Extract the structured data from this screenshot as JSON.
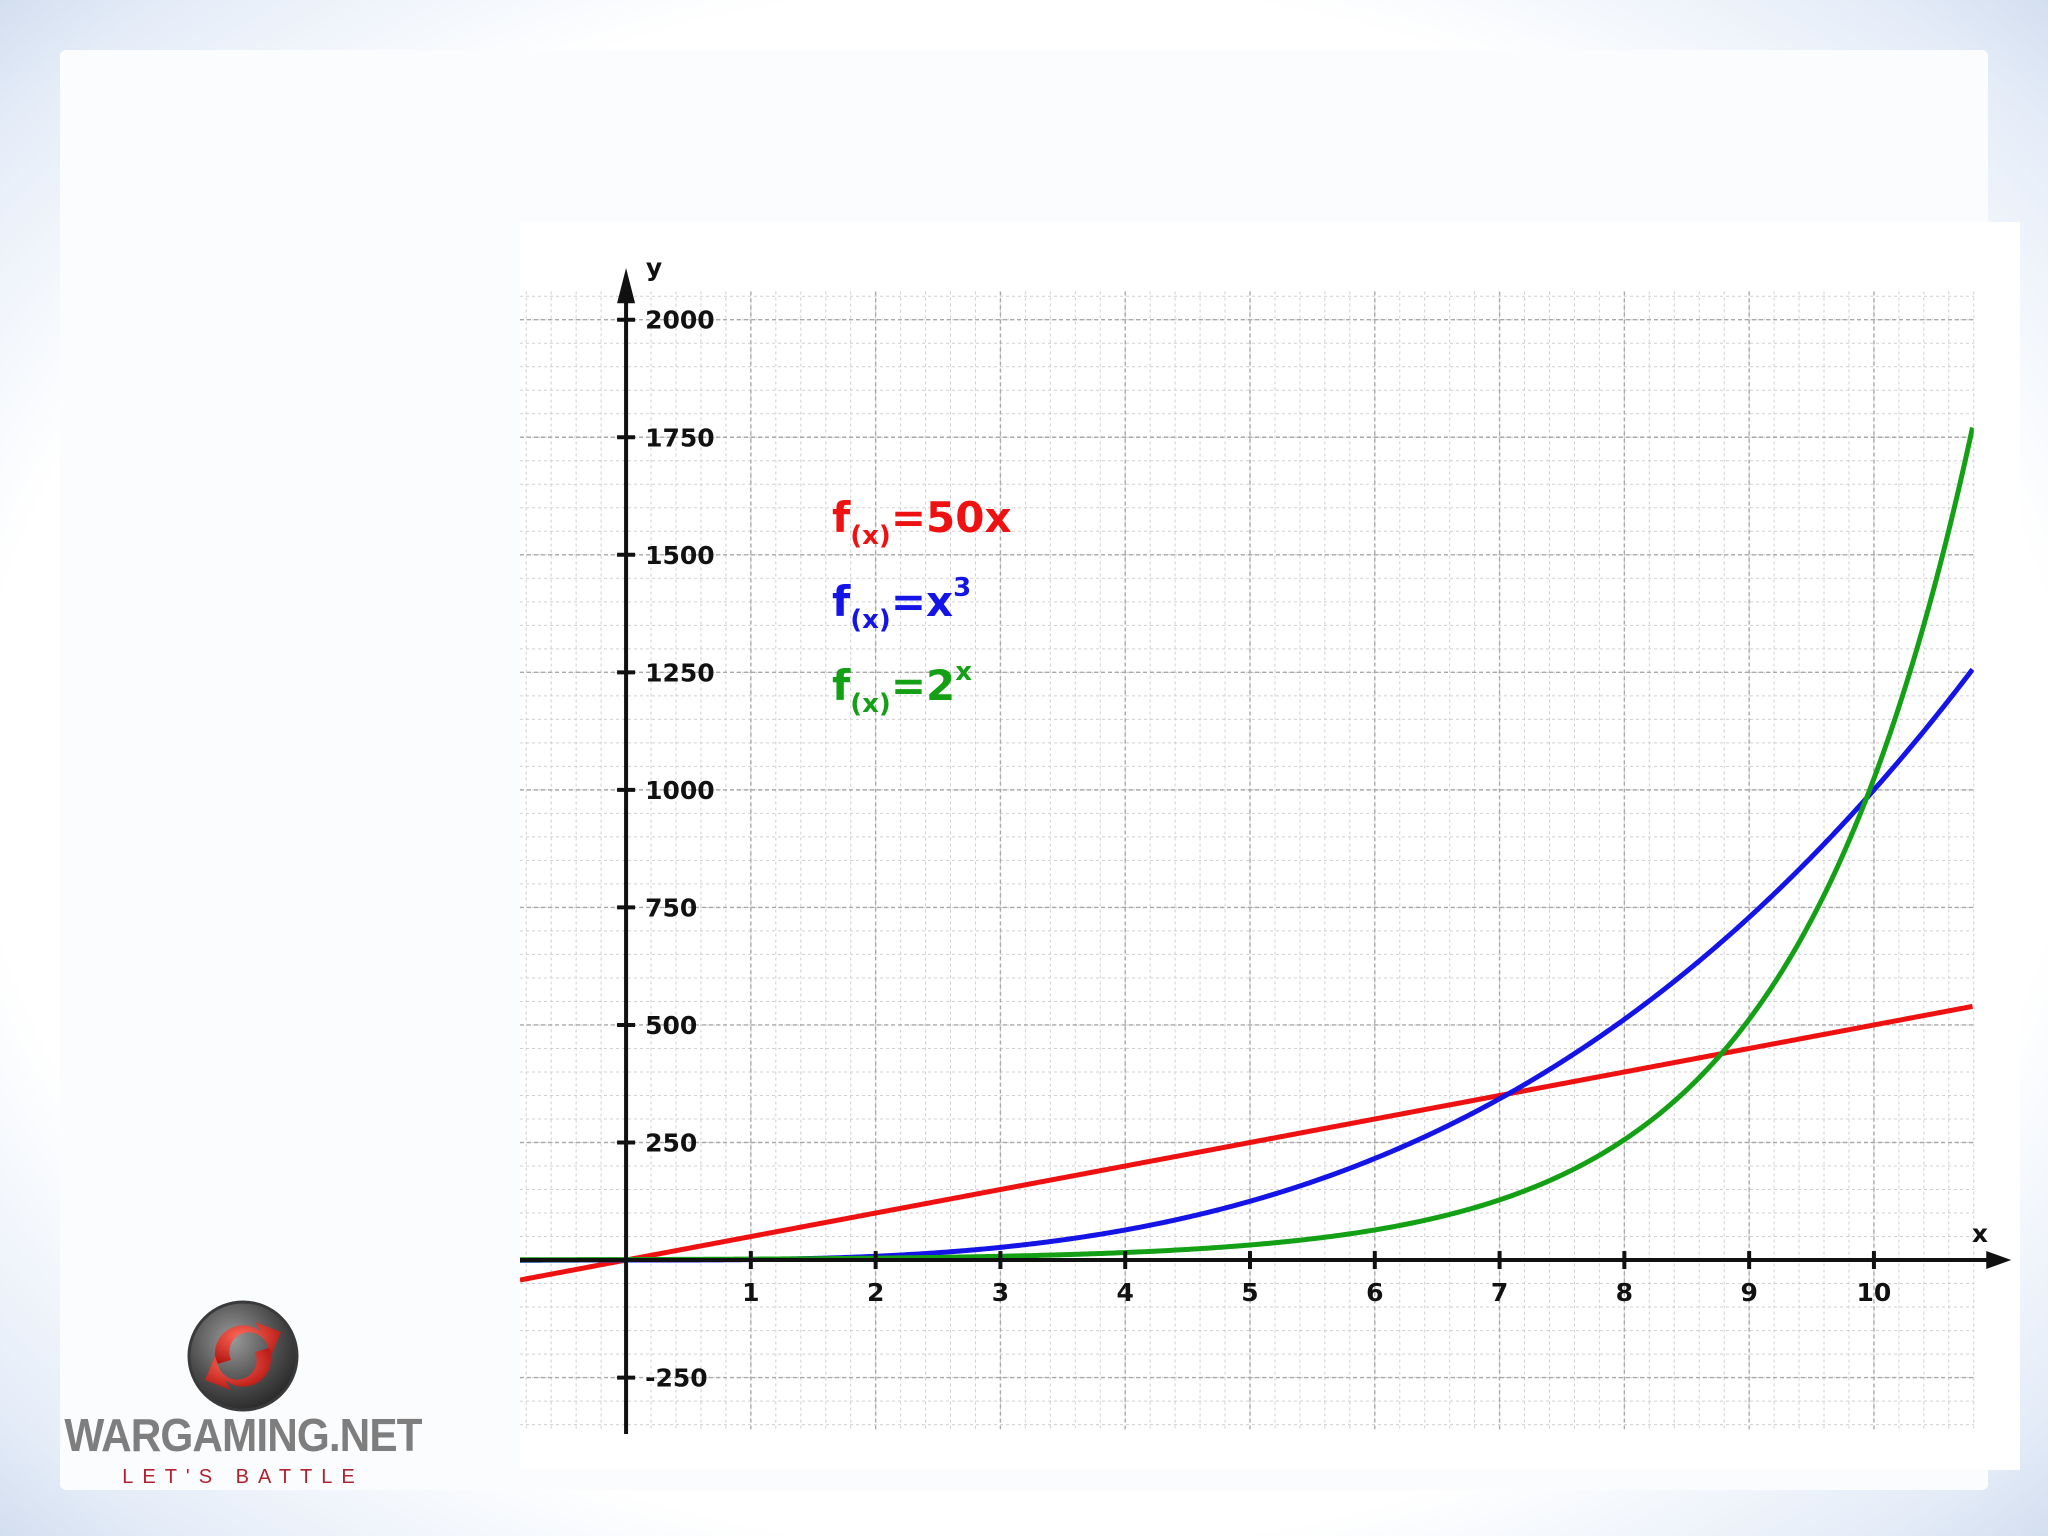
{
  "chart_data": {
    "type": "line",
    "xlabel": "x",
    "ylabel": "y",
    "xlim": [
      -0.85,
      10.85
    ],
    "ylim": [
      -370,
      2110
    ],
    "x_ticks": [
      1,
      2,
      3,
      4,
      5,
      6,
      7,
      8,
      9,
      10
    ],
    "y_ticks": [
      -250,
      250,
      500,
      750,
      1000,
      1250,
      1500,
      1750,
      2000
    ],
    "grid": true,
    "minor_grid": true,
    "series": [
      {
        "name": "f(x)=50x",
        "label_main": "f",
        "label_sub": "(x)",
        "label_rest": "=50x",
        "label_sup": "",
        "color": "#ee1111",
        "function": "50x",
        "values_at_ticks": [
          50,
          100,
          150,
          200,
          250,
          300,
          350,
          400,
          450,
          500
        ]
      },
      {
        "name": "f(x)=x3",
        "label_main": "f",
        "label_sub": "(x)",
        "label_rest": "=x",
        "label_sup": "3",
        "color": "#1414e6",
        "function": "x^3",
        "values_at_ticks": [
          1,
          8,
          27,
          64,
          125,
          216,
          343,
          512,
          729,
          1000
        ]
      },
      {
        "name": "f(x)=2x",
        "label_main": "f",
        "label_sub": "(x)",
        "label_rest": "=2",
        "label_sup": "x",
        "color": "#14a014",
        "function": "2^x",
        "values_at_ticks": [
          2,
          4,
          8,
          16,
          32,
          64,
          128,
          256,
          512,
          1024
        ]
      }
    ]
  },
  "logo": {
    "name": "WARGAMING.NET",
    "tagline": "LET'S BATTLE"
  }
}
